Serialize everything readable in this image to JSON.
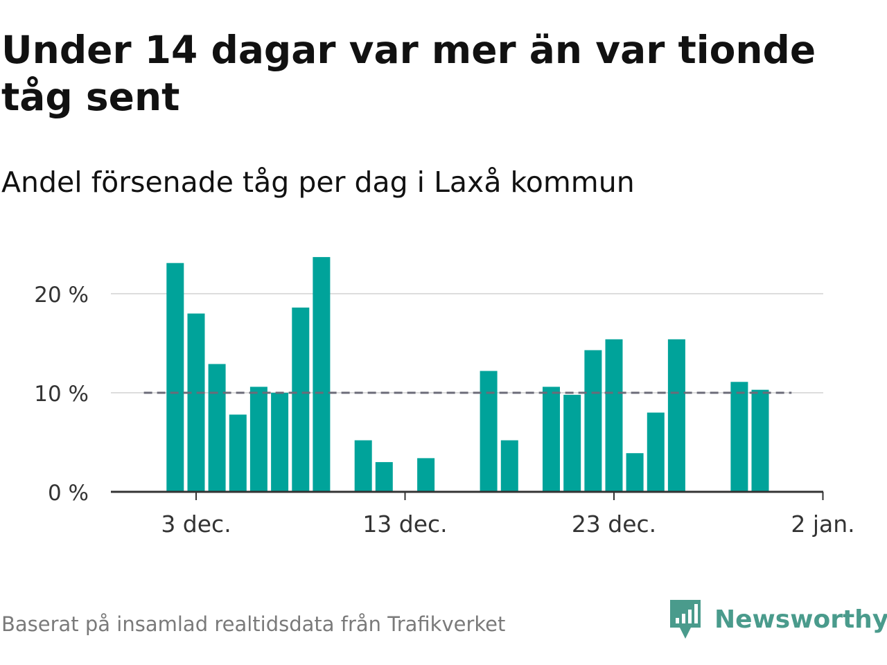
{
  "header": {
    "title": "Under 14 dagar var mer än var tionde tåg sent",
    "subtitle": "Andel försenade tåg per dag i Laxå kommun"
  },
  "footer": {
    "source": "Baserat på insamlad realtidsdata från Trafikverket",
    "brand": "Newsworthy",
    "brand_icon": "newsworthy-logo-icon"
  },
  "colors": {
    "bar": "#00a39a",
    "reference_line": "#6b6b78",
    "grid": "#dddddd",
    "axis": "#333333",
    "brand": "#4a9b8c"
  },
  "chart_data": {
    "type": "bar",
    "x": [
      "2023-12-02",
      "2023-12-03",
      "2023-12-04",
      "2023-12-05",
      "2023-12-06",
      "2023-12-07",
      "2023-12-08",
      "2023-12-09",
      "2023-12-10",
      "2023-12-11",
      "2023-12-12",
      "2023-12-13",
      "2023-12-14",
      "2023-12-15",
      "2023-12-16",
      "2023-12-17",
      "2023-12-18",
      "2023-12-19",
      "2023-12-20",
      "2023-12-21",
      "2023-12-22",
      "2023-12-23",
      "2023-12-24",
      "2023-12-25",
      "2023-12-26",
      "2023-12-27",
      "2023-12-28",
      "2023-12-29",
      "2023-12-30",
      "2023-12-31",
      "2024-01-01",
      "2024-01-02"
    ],
    "values": [
      23.1,
      18.0,
      12.9,
      7.8,
      10.6,
      10.0,
      18.6,
      23.7,
      null,
      5.2,
      3.0,
      0,
      3.4,
      null,
      null,
      12.2,
      5.2,
      null,
      10.6,
      9.8,
      14.3,
      15.4,
      3.9,
      8.0,
      15.4,
      null,
      null,
      11.1,
      10.3,
      null,
      null,
      null
    ],
    "unit": "%",
    "yticks": [
      0,
      10,
      20
    ],
    "ytick_labels": [
      "0 %",
      "10 %",
      "20 %"
    ],
    "xticks": [
      "2023-12-03",
      "2023-12-13",
      "2023-12-23",
      "2024-01-02"
    ],
    "xtick_labels": [
      "3 dec.",
      "13 dec.",
      "23 dec.",
      "2 jan."
    ],
    "ylim": [
      0,
      25
    ],
    "reference_line": {
      "value": 10,
      "style": "dashed",
      "from": "2023-12-01",
      "to": "2023-12-31"
    },
    "grid": "horizontal",
    "legend": "none"
  }
}
